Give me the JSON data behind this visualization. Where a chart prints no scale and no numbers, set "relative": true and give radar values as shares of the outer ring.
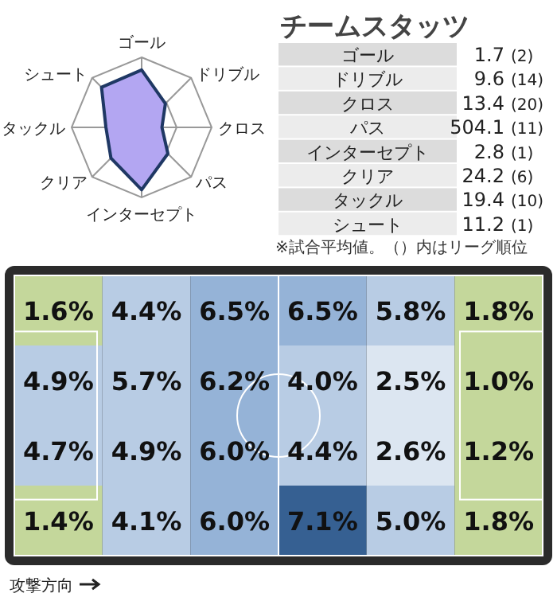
{
  "chart_data": [
    {
      "type": "radar",
      "relative": true,
      "categories": [
        "ゴール",
        "ドリブル",
        "クロス",
        "パス",
        "インターセプト",
        "クリア",
        "タックル",
        "シュート"
      ],
      "series": [
        {
          "color": "#1f3864",
          "values": [
            0.82,
            0.48,
            0.29,
            0.53,
            0.89,
            0.62,
            0.51,
            0.81
          ]
        }
      ]
    },
    {
      "type": "other",
      "title": "チームスタッツ",
      "categories": [
        "ゴール",
        "ドリブル",
        "クロス",
        "パス",
        "インターセプト",
        "クリア",
        "タックル",
        "シュート"
      ],
      "values": [
        1.7,
        9.6,
        13.4,
        504.1,
        2.8,
        24.2,
        19.4,
        11.2
      ],
      "data_labels": true,
      "annotations": [
        "(2)",
        "(14)",
        "(20)",
        "(11)",
        "(1)",
        "(6)",
        "(10)",
        "(1)",
        "※試合平均値。（）内はリーグ順位"
      ]
    },
    {
      "type": "heatmap",
      "categories": [
        null,
        null,
        null,
        null,
        null,
        null
      ],
      "y_categories": [
        null,
        null,
        null,
        null
      ],
      "cells": [
        [
          1.6,
          4.4,
          6.5,
          6.5,
          5.8,
          1.8
        ],
        [
          4.9,
          5.7,
          6.2,
          4.0,
          2.5,
          1.0
        ],
        [
          4.7,
          4.9,
          6.0,
          4.4,
          2.6,
          1.2
        ],
        [
          1.4,
          4.1,
          6.0,
          7.1,
          5.0,
          1.8
        ]
      ],
      "cell_labels": [
        [
          "1.6%",
          "4.4%",
          "6.5%",
          "6.5%",
          "5.8%",
          "1.8%"
        ],
        [
          "4.9%",
          "5.7%",
          "6.2%",
          "4.0%",
          "2.5%",
          "1.0%"
        ],
        [
          "4.7%",
          "4.9%",
          "6.0%",
          "4.4%",
          "2.6%",
          "1.2%"
        ],
        [
          "1.4%",
          "4.1%",
          "6.0%",
          "7.1%",
          "5.0%",
          "1.8%"
        ]
      ],
      "annotations": [
        "攻撃方向"
      ]
    }
  ]
}
